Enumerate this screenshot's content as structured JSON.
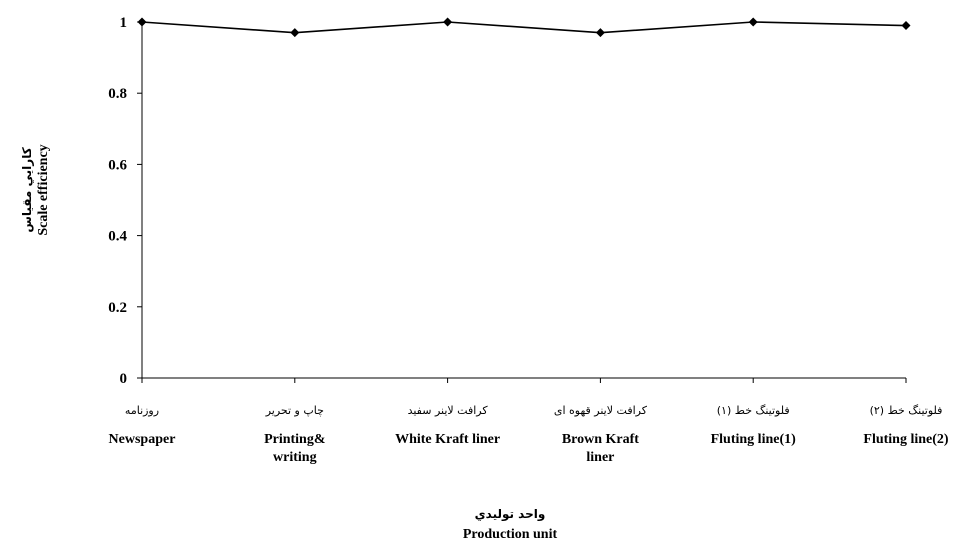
{
  "chart_data": {
    "type": "line",
    "categories": [
      {
        "fa": "روزنامه",
        "en": [
          "Newspaper"
        ]
      },
      {
        "fa": "چاپ و تحریر",
        "en": [
          "Printing&",
          "writing"
        ]
      },
      {
        "fa": "کرافت لاینر سفید",
        "en": [
          "White Kraft liner"
        ]
      },
      {
        "fa": "کرافت لاینر قهوه ای",
        "en": [
          "Brown Kraft",
          "liner"
        ]
      },
      {
        "fa": "فلوتینگ خط (۱)",
        "en": [
          "Fluting line(1)"
        ]
      },
      {
        "fa": "فلوتینگ خط (۲)",
        "en": [
          "Fluting line(2)"
        ]
      }
    ],
    "values": [
      1.0,
      0.97,
      1.0,
      0.97,
      1.0,
      0.99
    ],
    "ylim": [
      0,
      1
    ],
    "yticks": [
      "0",
      "0.2",
      "0.4",
      "0.6",
      "0.8",
      "1"
    ],
    "ylabel": {
      "fa": "كارايي مقياس",
      "en": "Scale efficiency"
    },
    "xlabel": {
      "fa": "واحد توليدي",
      "en": "Production unit"
    },
    "grid": false,
    "legend": "none",
    "colors": {
      "line": "#000000",
      "marker": "#000000",
      "axis": "#000000"
    }
  }
}
